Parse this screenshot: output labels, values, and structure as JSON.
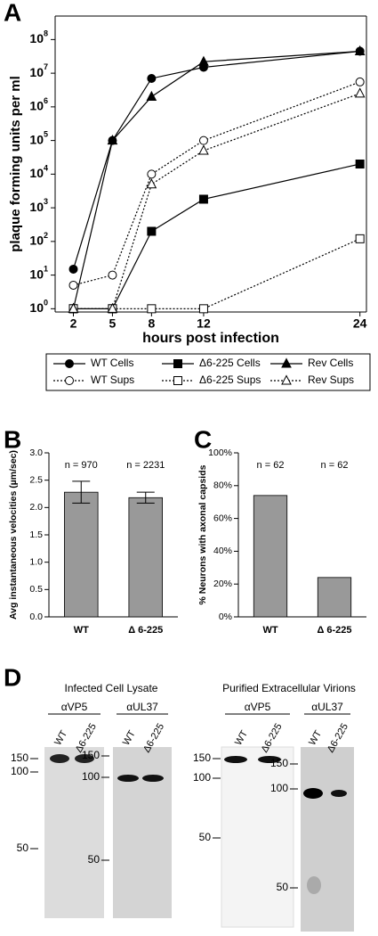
{
  "chart_data": [
    {
      "type": "line",
      "panel_label": "A",
      "ylabel": "plaque forming units per ml",
      "xlabel": "hours post infection",
      "yscale": "log",
      "frame": "box",
      "x": [
        2,
        5,
        8,
        12,
        24
      ],
      "xlim": [
        0.6,
        24.5
      ],
      "xticks": [
        2,
        5,
        8,
        12,
        24
      ],
      "ylim": [
        0.8,
        500000000
      ],
      "yticks": [
        {
          "value": 1,
          "label": "10",
          "sup": "0"
        },
        {
          "value": 10,
          "label": "10",
          "sup": "1"
        },
        {
          "value": 100,
          "label": "10",
          "sup": "2"
        },
        {
          "value": 1000,
          "label": "10",
          "sup": "3"
        },
        {
          "value": 10000,
          "label": "10",
          "sup": "4"
        },
        {
          "value": 100000,
          "label": "10",
          "sup": "5"
        },
        {
          "value": 1000000,
          "label": "10",
          "sup": "6"
        },
        {
          "value": 10000000,
          "label": "10",
          "sup": "7"
        },
        {
          "value": 100000000,
          "label": "10",
          "sup": "8"
        }
      ],
      "series": [
        {
          "name": "WT Cells",
          "color": "#000000",
          "marker": "circle",
          "filled": true,
          "dash": "solid",
          "values": [
            15,
            100000,
            7000000,
            15000000,
            45000000
          ]
        },
        {
          "name": "WT Sups",
          "color": "#000000",
          "marker": "circle",
          "filled": false,
          "dash": "dotted",
          "values": [
            5,
            10,
            10000,
            100000,
            5500000
          ]
        },
        {
          "name": "Δ6-225 Cells",
          "color": "#000000",
          "marker": "square",
          "filled": true,
          "dash": "solid",
          "values": [
            1,
            1,
            200,
            1800,
            20000
          ]
        },
        {
          "name": "Δ6-225 Sups",
          "color": "#000000",
          "marker": "square",
          "filled": false,
          "dash": "dotted",
          "values": [
            1,
            1,
            1,
            1,
            120
          ]
        },
        {
          "name": "Rev Cells",
          "color": "#000000",
          "marker": "triangle",
          "filled": true,
          "dash": "solid",
          "values": [
            1,
            100000,
            2000000,
            22000000,
            45000000
          ]
        },
        {
          "name": "Rev Sups",
          "color": "#000000",
          "marker": "triangle",
          "filled": false,
          "dash": "dotted",
          "values": [
            1,
            1,
            5000,
            50000,
            2500000
          ]
        }
      ],
      "legend": "below"
    },
    {
      "type": "bar",
      "panel_label": "B",
      "ylabel": "Avg instantaneous velocities (µm/sec)",
      "categories": [
        "WT",
        "Δ 6-225"
      ],
      "values": [
        2.28,
        2.18
      ],
      "errors": [
        0.2,
        0.1
      ],
      "color": "#999999",
      "annotations": [
        "n = 970",
        "n = 2231"
      ],
      "ylim": [
        0,
        3
      ],
      "yticks": [
        {
          "value": 0,
          "label": "0.0"
        },
        0.5,
        {
          "value": 1,
          "label": "1.0"
        },
        1.5,
        {
          "value": 2,
          "label": "2.0"
        },
        2.5,
        {
          "value": 3,
          "label": "3.0"
        }
      ]
    },
    {
      "type": "bar",
      "panel_label": "C",
      "ylabel": "% Neurons with axonal capsids",
      "categories": [
        "WT",
        "Δ 6-225"
      ],
      "values": [
        74,
        24
      ],
      "color": "#999999",
      "annotations": [
        "n = 62",
        "n = 62"
      ],
      "ylim": [
        0,
        100
      ],
      "yticks": [
        {
          "value": 0,
          "label": "0%"
        },
        {
          "value": 20,
          "label": "20%"
        },
        {
          "value": 40,
          "label": "40%"
        },
        {
          "value": 60,
          "label": "60%"
        },
        {
          "value": 80,
          "label": "80%"
        },
        {
          "value": 100,
          "label": "100%"
        }
      ]
    }
  ],
  "figure_d": {
    "panel_label": "D",
    "groups": [
      {
        "title": "Infected Cell Lysate",
        "blots": [
          {
            "antibody": "αVP5",
            "lanes": [
              "WT",
              "Δ6-225"
            ],
            "markers": [
              "150",
              "100",
              "50"
            ]
          },
          {
            "antibody": "αUL37",
            "lanes": [
              "WT",
              "Δ6-225"
            ],
            "markers": [
              "150",
              "100",
              "50"
            ]
          }
        ]
      },
      {
        "title": "Purified Extracellular Virions",
        "blots": [
          {
            "antibody": "αVP5",
            "lanes": [
              "WT",
              "Δ6-225"
            ],
            "markers": [
              "150",
              "100",
              "50"
            ]
          },
          {
            "antibody": "αUL37",
            "lanes": [
              "WT",
              "Δ6-225"
            ],
            "markers": [
              "150",
              "100",
              "50"
            ]
          }
        ]
      }
    ]
  }
}
